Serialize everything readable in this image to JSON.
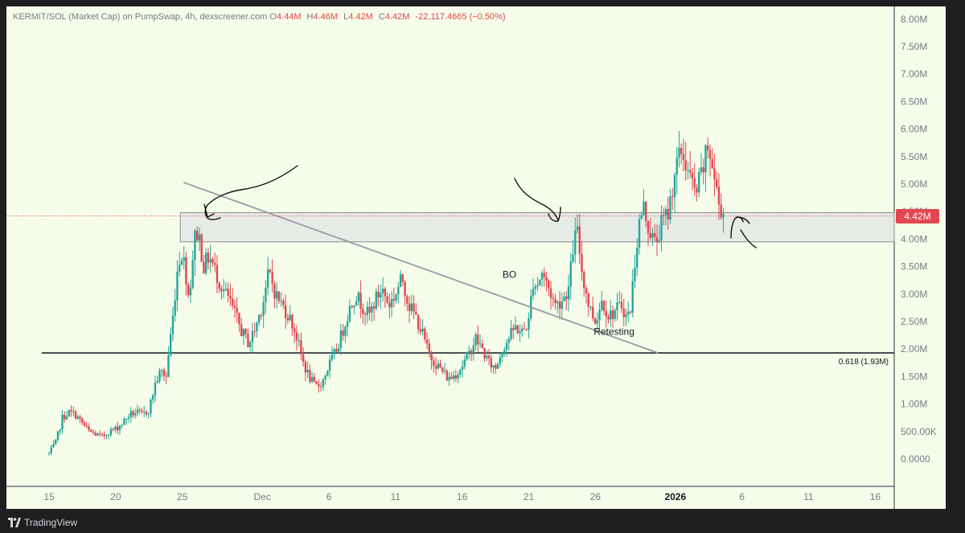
{
  "header": {
    "symbol": "KERMIT/SOL (Market Cap) on PumpSwap, 4h, dexscreener.com",
    "o_key": "O",
    "o_val": "4.44M",
    "h_key": "H",
    "h_val": "4.46M",
    "l_key": "L",
    "l_val": "4.42M",
    "c_key": "C",
    "c_val": "4.42M",
    "change": "-22,117.4665 (−0.50%)"
  },
  "footer": {
    "brand": "TradingView"
  },
  "colors": {
    "background": "#f5fdea",
    "up": "#26a69a",
    "down": "#e2474f",
    "zone_fill": "#e6ebe6",
    "zone_border": "#8a8a8a",
    "trendline": "#9a9aa6",
    "fib_line": "#131722",
    "axis_text": "#787b86"
  },
  "chart_data": {
    "type": "candlestick",
    "ylim": [
      0,
      8000000
    ],
    "yticks": [
      "8.00M",
      "7.50M",
      "7.00M",
      "6.50M",
      "6.00M",
      "5.50M",
      "5.00M",
      "4.50M",
      "4.00M",
      "3.50M",
      "3.00M",
      "2.50M",
      "2.00M",
      "1.50M",
      "1.00M",
      "500.00K",
      "0.0000"
    ],
    "ytick_values": [
      8000000,
      7500000,
      7000000,
      6500000,
      6000000,
      5500000,
      5000000,
      4500000,
      4000000,
      3500000,
      3000000,
      2500000,
      2000000,
      1500000,
      1000000,
      500000,
      0
    ],
    "xticks": [
      {
        "label": "15",
        "day": 0
      },
      {
        "label": "20",
        "day": 5
      },
      {
        "label": "25",
        "day": 10
      },
      {
        "label": "Dec",
        "day": 16
      },
      {
        "label": "6",
        "day": 21
      },
      {
        "label": "11",
        "day": 26
      },
      {
        "label": "16",
        "day": 31
      },
      {
        "label": "21",
        "day": 36
      },
      {
        "label": "26",
        "day": 41
      },
      {
        "label": "2026",
        "day": 47
      },
      {
        "label": "6",
        "day": 52
      },
      {
        "label": "11",
        "day": 57
      },
      {
        "label": "16",
        "day": 62
      }
    ],
    "anchors": [
      [
        0.0,
        100000
      ],
      [
        0.5,
        300000
      ],
      [
        1.0,
        750000
      ],
      [
        1.5,
        850000
      ],
      [
        2.0,
        800000
      ],
      [
        2.5,
        650000
      ],
      [
        3.0,
        500000
      ],
      [
        3.5,
        450000
      ],
      [
        4.0,
        400000
      ],
      [
        4.5,
        500000
      ],
      [
        5.0,
        550000
      ],
      [
        5.5,
        650000
      ],
      [
        6.0,
        800000
      ],
      [
        6.5,
        850000
      ],
      [
        7.0,
        800000
      ],
      [
        7.5,
        900000
      ],
      [
        8.0,
        1400000
      ],
      [
        8.4,
        1600000
      ],
      [
        8.8,
        1500000
      ],
      [
        9.0,
        2000000
      ],
      [
        9.3,
        2600000
      ],
      [
        9.6,
        3400000
      ],
      [
        9.9,
        3800000
      ],
      [
        10.2,
        3500000
      ],
      [
        10.5,
        2900000
      ],
      [
        10.9,
        4000000
      ],
      [
        11.2,
        4150000
      ],
      [
        11.6,
        3500000
      ],
      [
        12.0,
        3700000
      ],
      [
        12.5,
        3400000
      ],
      [
        13.0,
        3100000
      ],
      [
        13.5,
        2900000
      ],
      [
        14.0,
        2600000
      ],
      [
        14.5,
        2300000
      ],
      [
        15.0,
        2100000
      ],
      [
        15.5,
        2400000
      ],
      [
        16.0,
        2800000
      ],
      [
        16.5,
        3400000
      ],
      [
        17.0,
        3000000
      ],
      [
        17.5,
        2800000
      ],
      [
        18.0,
        2600000
      ],
      [
        18.5,
        2300000
      ],
      [
        19.0,
        1800000
      ],
      [
        19.5,
        1500000
      ],
      [
        20.0,
        1300000
      ],
      [
        20.5,
        1400000
      ],
      [
        21.0,
        1700000
      ],
      [
        21.5,
        1950000
      ],
      [
        22.0,
        2300000
      ],
      [
        22.5,
        2700000
      ],
      [
        23.0,
        3000000
      ],
      [
        23.5,
        2800000
      ],
      [
        24.0,
        2600000
      ],
      [
        24.5,
        2900000
      ],
      [
        25.0,
        3100000
      ],
      [
        25.5,
        2800000
      ],
      [
        26.0,
        3000000
      ],
      [
        26.5,
        3300000
      ],
      [
        27.0,
        2800000
      ],
      [
        27.5,
        2600000
      ],
      [
        28.0,
        2300000
      ],
      [
        28.5,
        1900000
      ],
      [
        29.0,
        1750000
      ],
      [
        29.5,
        1600000
      ],
      [
        30.0,
        1450000
      ],
      [
        30.5,
        1550000
      ],
      [
        31.0,
        1700000
      ],
      [
        31.5,
        1900000
      ],
      [
        32.0,
        2200000
      ],
      [
        32.5,
        2000000
      ],
      [
        33.0,
        1750000
      ],
      [
        33.5,
        1650000
      ],
      [
        34.0,
        2000000
      ],
      [
        34.5,
        2200000
      ],
      [
        35.0,
        2400000
      ],
      [
        35.5,
        2300000
      ],
      [
        36.0,
        2500000
      ],
      [
        36.3,
        3250000
      ],
      [
        36.6,
        3150000
      ],
      [
        37.0,
        3400000
      ],
      [
        37.5,
        3100000
      ],
      [
        38.0,
        2800000
      ],
      [
        38.5,
        2900000
      ],
      [
        39.0,
        3100000
      ],
      [
        39.3,
        3800000
      ],
      [
        39.6,
        4200000
      ],
      [
        40.0,
        3400000
      ],
      [
        40.5,
        2800000
      ],
      [
        41.0,
        2500000
      ],
      [
        41.5,
        2900000
      ],
      [
        42.0,
        2600000
      ],
      [
        42.5,
        2700000
      ],
      [
        43.0,
        2800000
      ],
      [
        43.3,
        2600000
      ],
      [
        43.6,
        2650000
      ],
      [
        44.0,
        3700000
      ],
      [
        44.3,
        4300000
      ],
      [
        44.6,
        4600000
      ],
      [
        45.0,
        4200000
      ],
      [
        45.5,
        3900000
      ],
      [
        46.0,
        4300000
      ],
      [
        46.5,
        4500000
      ],
      [
        47.0,
        5300000
      ],
      [
        47.5,
        5600000
      ],
      [
        48.0,
        5200000
      ],
      [
        48.5,
        4800000
      ],
      [
        49.0,
        5200000
      ],
      [
        49.5,
        5700000
      ],
      [
        50.0,
        5000000
      ],
      [
        50.3,
        4600000
      ],
      [
        50.6,
        4500000
      ]
    ],
    "zone": {
      "low": 3950000,
      "high": 4480000,
      "from_day": 9.85
    },
    "trendline": {
      "from": [
        10.1,
        5030000
      ],
      "to": [
        45.7,
        1930000
      ]
    },
    "fib_level": {
      "value": 1930000,
      "label": "0.618 (1.93M)"
    },
    "last_price": {
      "value": 4420000,
      "label": "4.42M"
    },
    "annotations": [
      {
        "text": "BO",
        "day": 34.55,
        "value": 3300000
      },
      {
        "text": "Retesting",
        "day": 42.4,
        "value": 2260000
      }
    ]
  }
}
